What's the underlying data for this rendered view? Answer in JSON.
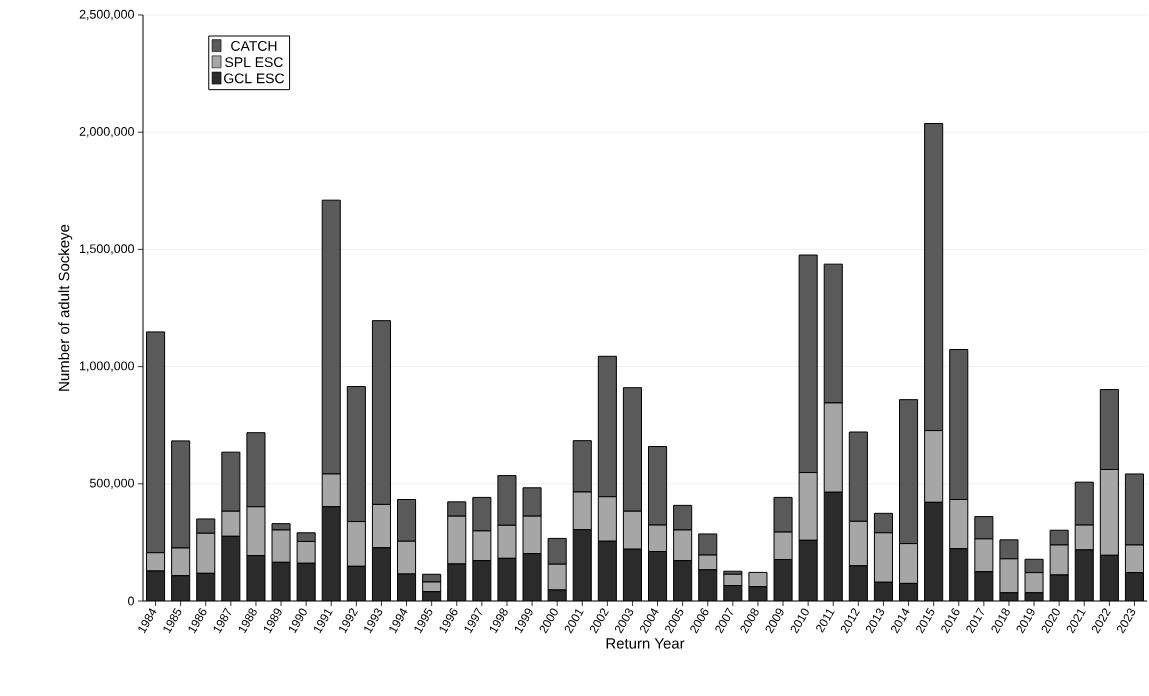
{
  "chart_data": {
    "type": "bar",
    "stacked": true,
    "xlabel": "Return Year",
    "ylabel": "Number of adult Sockeye",
    "categories": [
      "1984",
      "1985",
      "1986",
      "1987",
      "1988",
      "1989",
      "1990",
      "1991",
      "1992",
      "1993",
      "1994",
      "1995",
      "1996",
      "1997",
      "1998",
      "1999",
      "2000",
      "2001",
      "2002",
      "2003",
      "2004",
      "2005",
      "2006",
      "2007",
      "2008",
      "2009",
      "2010",
      "2011",
      "2012",
      "2013",
      "2014",
      "2015",
      "2016",
      "2017",
      "2018",
      "2019",
      "2020",
      "2021",
      "2022",
      "2023"
    ],
    "series": [
      {
        "name": "GCL ESC",
        "color": "#2b2b2b",
        "values": [
          128000,
          108000,
          118000,
          276000,
          194000,
          165000,
          161000,
          402000,
          148000,
          227000,
          115000,
          40000,
          158000,
          172000,
          182000,
          202000,
          47000,
          304000,
          255000,
          221000,
          211000,
          172000,
          133000,
          66000,
          61000,
          177000,
          259000,
          464000,
          150000,
          80000,
          75000,
          421000,
          223000,
          125000,
          35000,
          35000,
          111000,
          218000,
          195000,
          121000
        ]
      },
      {
        "name": "SPL ESC",
        "color": "#a6a6a6",
        "values": [
          78000,
          118000,
          171000,
          107000,
          208000,
          138000,
          93000,
          140000,
          191000,
          185000,
          140000,
          41000,
          204000,
          127000,
          141000,
          160000,
          110000,
          161000,
          190000,
          162000,
          113000,
          131000,
          63000,
          48000,
          61000,
          117000,
          289000,
          381000,
          190000,
          211000,
          170000,
          306000,
          210000,
          140000,
          145000,
          86000,
          128000,
          106000,
          366000,
          118000
        ]
      },
      {
        "name": "CATCH",
        "color": "#5a5a5a",
        "values": [
          942000,
          457000,
          61000,
          252000,
          316000,
          27000,
          37000,
          1168000,
          576000,
          784000,
          178000,
          33000,
          61000,
          143000,
          212000,
          121000,
          110000,
          219000,
          599000,
          527000,
          335000,
          105000,
          90000,
          13000,
          0,
          148000,
          928000,
          592000,
          381000,
          83000,
          614000,
          1310000,
          640000,
          95000,
          81000,
          57000,
          63000,
          183000,
          341000,
          303000
        ]
      }
    ],
    "ylim": [
      0,
      2500000
    ],
    "yticks": [
      0,
      {
        "value": 500000,
        "label": "500,000"
      },
      {
        "value": 1000000,
        "label": "1,000,000"
      },
      {
        "value": 1500000,
        "label": "1,500,000"
      },
      {
        "value": 2000000,
        "label": "2,000,000"
      },
      {
        "value": 2500000,
        "label": "2,500,000"
      }
    ],
    "grid": "y",
    "legend": "top left"
  }
}
